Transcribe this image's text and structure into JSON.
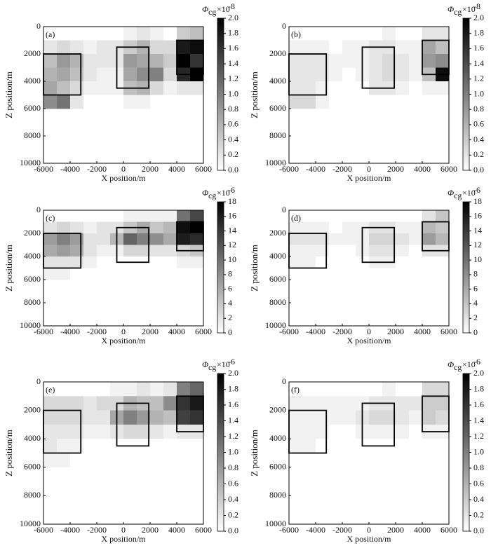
{
  "chart_data": [
    {
      "type": "heatmap",
      "panel_label": "(a)",
      "x_label": "X position/m",
      "y_label": "Z position/m",
      "cb_symbol": "Φ",
      "cb_sub": "cg",
      "cb_mult": "×10",
      "cb_exp": "-8",
      "xlim": [
        -6000,
        6000
      ],
      "ylim": [
        10000,
        0
      ],
      "xticks": [
        -6000,
        -4000,
        -2000,
        0,
        2000,
        4000,
        6000
      ],
      "yticks": [
        0,
        2000,
        4000,
        6000,
        8000,
        10000
      ],
      "clim": [
        0,
        2
      ],
      "cticks": [
        {
          "value": 0,
          "label": "0.0"
        },
        {
          "value": 0.2,
          "label": "0.2"
        },
        {
          "value": 0.4,
          "label": "0.4"
        },
        {
          "value": 0.6,
          "label": "0.6"
        },
        {
          "value": 0.8,
          "label": "0.8"
        },
        {
          "value": 1,
          "label": "1.0"
        },
        {
          "value": 1.2,
          "label": "1.2"
        },
        {
          "value": 1.4,
          "label": "1.4"
        },
        {
          "value": 1.6,
          "label": "1.6"
        },
        {
          "value": 1.8,
          "label": "1.8"
        },
        {
          "value": 2,
          "label": "2.0"
        }
      ],
      "x": [
        -5500,
        -4500,
        -3500,
        -2500,
        -1500,
        -500,
        500,
        1500,
        2500,
        3500,
        4500,
        5500
      ],
      "z": [
        500,
        1500,
        2500,
        3500,
        4500,
        5500
      ],
      "values": [
        [
          0,
          0,
          0,
          0,
          0,
          0,
          0.1,
          0.2,
          0.1,
          0,
          0.4,
          0.5
        ],
        [
          0.2,
          0.3,
          0.2,
          0.1,
          0.2,
          0.2,
          0.4,
          0.6,
          0.3,
          0.3,
          1.8,
          1.9
        ],
        [
          0.5,
          0.8,
          0.6,
          0.2,
          0.2,
          0.2,
          0.8,
          0.7,
          0.6,
          0.4,
          2,
          1.6
        ],
        [
          0.6,
          0.7,
          0.5,
          0.2,
          0.1,
          0.1,
          0.7,
          0.9,
          1,
          0.3,
          1.7,
          2
        ],
        [
          0.7,
          0.5,
          0.3,
          0.1,
          0.1,
          0.1,
          0.5,
          0.6,
          0.3,
          0.1,
          0.2,
          0.2
        ],
        [
          0.9,
          1.1,
          0.2,
          0,
          0,
          0,
          0.1,
          0.1,
          0,
          0,
          0,
          0
        ]
      ],
      "boxes": [
        {
          "x0": -6000,
          "x1": -3200,
          "z0": 2000,
          "z1": 5000
        },
        {
          "x0": -500,
          "x1": 1900,
          "z0": 1500,
          "z1": 4500
        },
        {
          "x0": 4000,
          "x1": 6000,
          "z0": 1000,
          "z1": 3500
        }
      ]
    },
    {
      "type": "heatmap",
      "panel_label": "(b)",
      "x_label": "X position/m",
      "y_label": "Z position/m",
      "cb_symbol": "Φ",
      "cb_sub": "cg",
      "cb_mult": "×10",
      "cb_exp": "-8",
      "xlim": [
        -6000,
        6000
      ],
      "ylim": [
        10000,
        0
      ],
      "xticks": [
        -6000,
        -4000,
        -2000,
        0,
        2000,
        4000,
        6000
      ],
      "yticks": [
        0,
        2000,
        4000,
        6000,
        8000,
        10000
      ],
      "clim": [
        0,
        2
      ],
      "cticks": [
        {
          "value": 0,
          "label": "0.0"
        },
        {
          "value": 0.2,
          "label": "0.2"
        },
        {
          "value": 0.4,
          "label": "0.4"
        },
        {
          "value": 0.6,
          "label": "0.6"
        },
        {
          "value": 0.8,
          "label": "0.8"
        },
        {
          "value": 1,
          "label": "1.0"
        },
        {
          "value": 1.2,
          "label": "1.2"
        },
        {
          "value": 1.4,
          "label": "1.4"
        },
        {
          "value": 1.6,
          "label": "1.6"
        },
        {
          "value": 1.8,
          "label": "1.8"
        },
        {
          "value": 2,
          "label": "2.0"
        }
      ],
      "x": [
        -5500,
        -4500,
        -3500,
        -2500,
        -1500,
        -500,
        500,
        1500,
        2500,
        3500,
        4500,
        5500
      ],
      "z": [
        500,
        1500,
        2500,
        3500,
        4500,
        5500
      ],
      "values": [
        [
          0,
          0,
          0,
          0,
          0,
          0,
          0,
          0.1,
          0,
          0,
          0.2,
          0.2
        ],
        [
          0.1,
          0.1,
          0.1,
          0,
          0.1,
          0.1,
          0.2,
          0.2,
          0.1,
          0.1,
          0.7,
          0.5
        ],
        [
          0.2,
          0.2,
          0.2,
          0.1,
          0.1,
          0.1,
          0.2,
          0.3,
          0.2,
          0.1,
          0.8,
          0.9
        ],
        [
          0.2,
          0.2,
          0.2,
          0.1,
          0,
          0.1,
          0.2,
          0.3,
          0.2,
          0.1,
          0.5,
          1.9
        ],
        [
          0.2,
          0.2,
          0.1,
          0,
          0,
          0,
          0.2,
          0.2,
          0.1,
          0,
          0.1,
          0.1
        ],
        [
          0.3,
          0.3,
          0.1,
          0,
          0,
          0,
          0,
          0,
          0,
          0,
          0,
          0
        ]
      ],
      "boxes": [
        {
          "x0": -6000,
          "x1": -3200,
          "z0": 2000,
          "z1": 5000
        },
        {
          "x0": -500,
          "x1": 1900,
          "z0": 1500,
          "z1": 4500
        },
        {
          "x0": 4000,
          "x1": 6000,
          "z0": 1000,
          "z1": 3500
        }
      ]
    },
    {
      "type": "heatmap",
      "panel_label": "(c)",
      "x_label": "X position/m",
      "y_label": "Z position/m",
      "cb_symbol": "Φ",
      "cb_sub": "cg",
      "cb_mult": "×10",
      "cb_exp": "-6",
      "xlim": [
        -6000,
        6000
      ],
      "ylim": [
        10000,
        0
      ],
      "xticks": [
        -6000,
        -4000,
        -2000,
        0,
        2000,
        4000,
        6000
      ],
      "yticks": [
        0,
        2000,
        4000,
        6000,
        8000,
        10000
      ],
      "clim": [
        0,
        18
      ],
      "cticks": [
        0,
        2,
        4,
        6,
        8,
        10,
        12,
        14,
        16,
        18
      ],
      "x": [
        -5500,
        -4500,
        -3500,
        -2500,
        -1500,
        -500,
        500,
        1500,
        2500,
        3500,
        4500,
        5500
      ],
      "z": [
        500,
        1500,
        2500,
        3500,
        4500,
        5500
      ],
      "values": [
        [
          0,
          0,
          0,
          0,
          0,
          0,
          1,
          1,
          1,
          1,
          10,
          13
        ],
        [
          2,
          3,
          2,
          1,
          2,
          2,
          4,
          6,
          4,
          5,
          17,
          18
        ],
        [
          7,
          9,
          7,
          2,
          2,
          5,
          11,
          9,
          8,
          6,
          16,
          15
        ],
        [
          6,
          7,
          6,
          2,
          1,
          1,
          3,
          3,
          2,
          2,
          3,
          4
        ],
        [
          2,
          2,
          2,
          1,
          0,
          0,
          0,
          0,
          0,
          0,
          1,
          1
        ],
        [
          1,
          1,
          0,
          0,
          0,
          0,
          0,
          0,
          0,
          0,
          0,
          0
        ]
      ],
      "boxes": [
        {
          "x0": -6000,
          "x1": -3200,
          "z0": 2000,
          "z1": 5000
        },
        {
          "x0": -500,
          "x1": 1900,
          "z0": 1500,
          "z1": 4500
        },
        {
          "x0": 4000,
          "x1": 6000,
          "z0": 1000,
          "z1": 3500
        }
      ]
    },
    {
      "type": "heatmap",
      "panel_label": "(d)",
      "x_label": "X position/m",
      "y_label": "Z position/m",
      "cb_symbol": "Φ",
      "cb_sub": "cg",
      "cb_mult": "×10",
      "cb_exp": "-6",
      "xlim": [
        -6000,
        6000
      ],
      "ylim": [
        10000,
        0
      ],
      "xticks": [
        -6000,
        -4000,
        -2000,
        0,
        2000,
        4000,
        6000
      ],
      "yticks": [
        0,
        2000,
        4000,
        6000,
        8000,
        10000
      ],
      "clim": [
        0,
        18
      ],
      "cticks": [
        0,
        2,
        4,
        6,
        8,
        10,
        12,
        14,
        16,
        18
      ],
      "x": [
        -5500,
        -4500,
        -3500,
        -2500,
        -1500,
        -500,
        500,
        1500,
        2500,
        3500,
        4500,
        5500
      ],
      "z": [
        500,
        1500,
        2500,
        3500,
        4500,
        5500
      ],
      "values": [
        [
          0,
          0,
          0,
          0,
          0,
          0,
          0,
          0,
          0,
          0,
          2,
          4
        ],
        [
          1,
          1,
          1,
          0,
          1,
          1,
          2,
          2,
          1,
          1,
          5,
          4
        ],
        [
          2,
          2,
          2,
          1,
          1,
          1,
          3,
          3,
          2,
          1,
          7,
          5
        ],
        [
          1,
          1,
          1,
          0,
          0,
          1,
          2,
          2,
          1,
          0,
          2,
          2
        ],
        [
          1,
          1,
          0,
          0,
          0,
          0,
          1,
          1,
          0,
          0,
          0,
          0
        ],
        [
          0,
          0,
          0,
          0,
          0,
          0,
          0,
          0,
          0,
          0,
          0,
          0
        ]
      ],
      "boxes": [
        {
          "x0": -6000,
          "x1": -3200,
          "z0": 2000,
          "z1": 5000
        },
        {
          "x0": -500,
          "x1": 1900,
          "z0": 1500,
          "z1": 4500
        },
        {
          "x0": 4000,
          "x1": 6000,
          "z0": 1000,
          "z1": 3500
        }
      ]
    },
    {
      "type": "heatmap",
      "panel_label": "(e)",
      "x_label": "X position/m",
      "y_label": "Z position/m",
      "cb_symbol": "Φ",
      "cb_sub": "cg",
      "cb_mult": "×10",
      "cb_exp": "-6",
      "xlim": [
        -6000,
        6000
      ],
      "ylim": [
        10000,
        0
      ],
      "xticks": [
        -6000,
        -4000,
        -2000,
        0,
        2000,
        4000,
        6000
      ],
      "yticks": [
        0,
        2000,
        4000,
        6000,
        8000,
        10000
      ],
      "clim": [
        0,
        2
      ],
      "cticks": [
        {
          "value": 0,
          "label": "0.0"
        },
        {
          "value": 0.2,
          "label": "0.2"
        },
        {
          "value": 0.4,
          "label": "0.4"
        },
        {
          "value": 0.6,
          "label": "0.6"
        },
        {
          "value": 0.8,
          "label": "0.8"
        },
        {
          "value": 1,
          "label": "1.0"
        },
        {
          "value": 1.2,
          "label": "1.2"
        },
        {
          "value": 1.4,
          "label": "1.4"
        },
        {
          "value": 1.6,
          "label": "1.6"
        },
        {
          "value": 1.8,
          "label": "1.8"
        },
        {
          "value": 2,
          "label": "2.0"
        }
      ],
      "x": [
        -5500,
        -4500,
        -3500,
        -2500,
        -1500,
        -500,
        500,
        1500,
        2500,
        3500,
        4500,
        5500
      ],
      "z": [
        500,
        1500,
        2500,
        3500,
        4500,
        5500
      ],
      "values": [
        [
          0,
          0,
          0,
          0,
          0,
          0.1,
          0.1,
          0.2,
          0.1,
          0.2,
          1,
          1.2
        ],
        [
          0.3,
          0.3,
          0.3,
          0.2,
          0.3,
          0.3,
          0.6,
          0.5,
          0.5,
          0.9,
          1.6,
          1.8
        ],
        [
          0.3,
          0.3,
          0.3,
          0.2,
          0.2,
          0.7,
          1,
          0.8,
          0.6,
          0.5,
          1.5,
          1.6
        ],
        [
          0.2,
          0.2,
          0.2,
          0.1,
          0.1,
          0.2,
          0.3,
          0.3,
          0.2,
          0.1,
          0.2,
          0.2
        ],
        [
          0.2,
          0.1,
          0.1,
          0,
          0,
          0,
          0,
          0,
          0,
          0,
          0,
          0
        ],
        [
          0.1,
          0.1,
          0,
          0,
          0,
          0,
          0,
          0,
          0,
          0,
          0,
          0
        ]
      ],
      "boxes": [
        {
          "x0": -6000,
          "x1": -3200,
          "z0": 2000,
          "z1": 5000
        },
        {
          "x0": -500,
          "x1": 1900,
          "z0": 1500,
          "z1": 4500
        },
        {
          "x0": 4000,
          "x1": 6000,
          "z0": 1000,
          "z1": 3500
        }
      ]
    },
    {
      "type": "heatmap",
      "panel_label": "(f)",
      "x_label": "X position/m",
      "y_label": "Z position/m",
      "cb_symbol": "Φ",
      "cb_sub": "cg",
      "cb_mult": "×10",
      "cb_exp": "-6",
      "xlim": [
        -6000,
        6000
      ],
      "ylim": [
        10000,
        0
      ],
      "xticks": [
        -6000,
        -4000,
        -2000,
        0,
        2000,
        4000,
        6000
      ],
      "yticks": [
        0,
        2000,
        4000,
        6000,
        8000,
        10000
      ],
      "clim": [
        0,
        2
      ],
      "cticks": [
        {
          "value": 0,
          "label": "0.0"
        },
        {
          "value": 0.2,
          "label": "0.2"
        },
        {
          "value": 0.4,
          "label": "0.4"
        },
        {
          "value": 0.6,
          "label": "0.6"
        },
        {
          "value": 0.8,
          "label": "0.8"
        },
        {
          "value": 1,
          "label": "1.0"
        },
        {
          "value": 1.2,
          "label": "1.2"
        },
        {
          "value": 1.4,
          "label": "1.4"
        },
        {
          "value": 1.6,
          "label": "1.6"
        },
        {
          "value": 1.8,
          "label": "1.8"
        },
        {
          "value": 2,
          "label": "2.0"
        }
      ],
      "x": [
        -5500,
        -4500,
        -3500,
        -2500,
        -1500,
        -500,
        500,
        1500,
        2500,
        3500,
        4500,
        5500
      ],
      "z": [
        500,
        1500,
        2500,
        3500,
        4500,
        5500
      ],
      "values": [
        [
          0,
          0,
          0,
          0,
          0,
          0,
          0,
          0.1,
          0,
          0,
          0.3,
          0.3
        ],
        [
          0.1,
          0.1,
          0.1,
          0.1,
          0.1,
          0.1,
          0.2,
          0.2,
          0.2,
          0.2,
          0.4,
          0.4
        ],
        [
          0.1,
          0.1,
          0.1,
          0.1,
          0.1,
          0.2,
          0.3,
          0.3,
          0.2,
          0.1,
          0.4,
          0.3
        ],
        [
          0.1,
          0.1,
          0.1,
          0,
          0,
          0.1,
          0.1,
          0.1,
          0.1,
          0,
          0.1,
          0.1
        ],
        [
          0.1,
          0.1,
          0,
          0,
          0,
          0,
          0,
          0,
          0,
          0,
          0,
          0
        ],
        [
          0,
          0,
          0,
          0,
          0,
          0,
          0,
          0,
          0,
          0,
          0,
          0
        ]
      ],
      "boxes": [
        {
          "x0": -6000,
          "x1": -3200,
          "z0": 2000,
          "z1": 5000
        },
        {
          "x0": -500,
          "x1": 1900,
          "z0": 1500,
          "z1": 4500
        },
        {
          "x0": 4000,
          "x1": 6000,
          "z0": 1000,
          "z1": 3500
        }
      ]
    }
  ]
}
